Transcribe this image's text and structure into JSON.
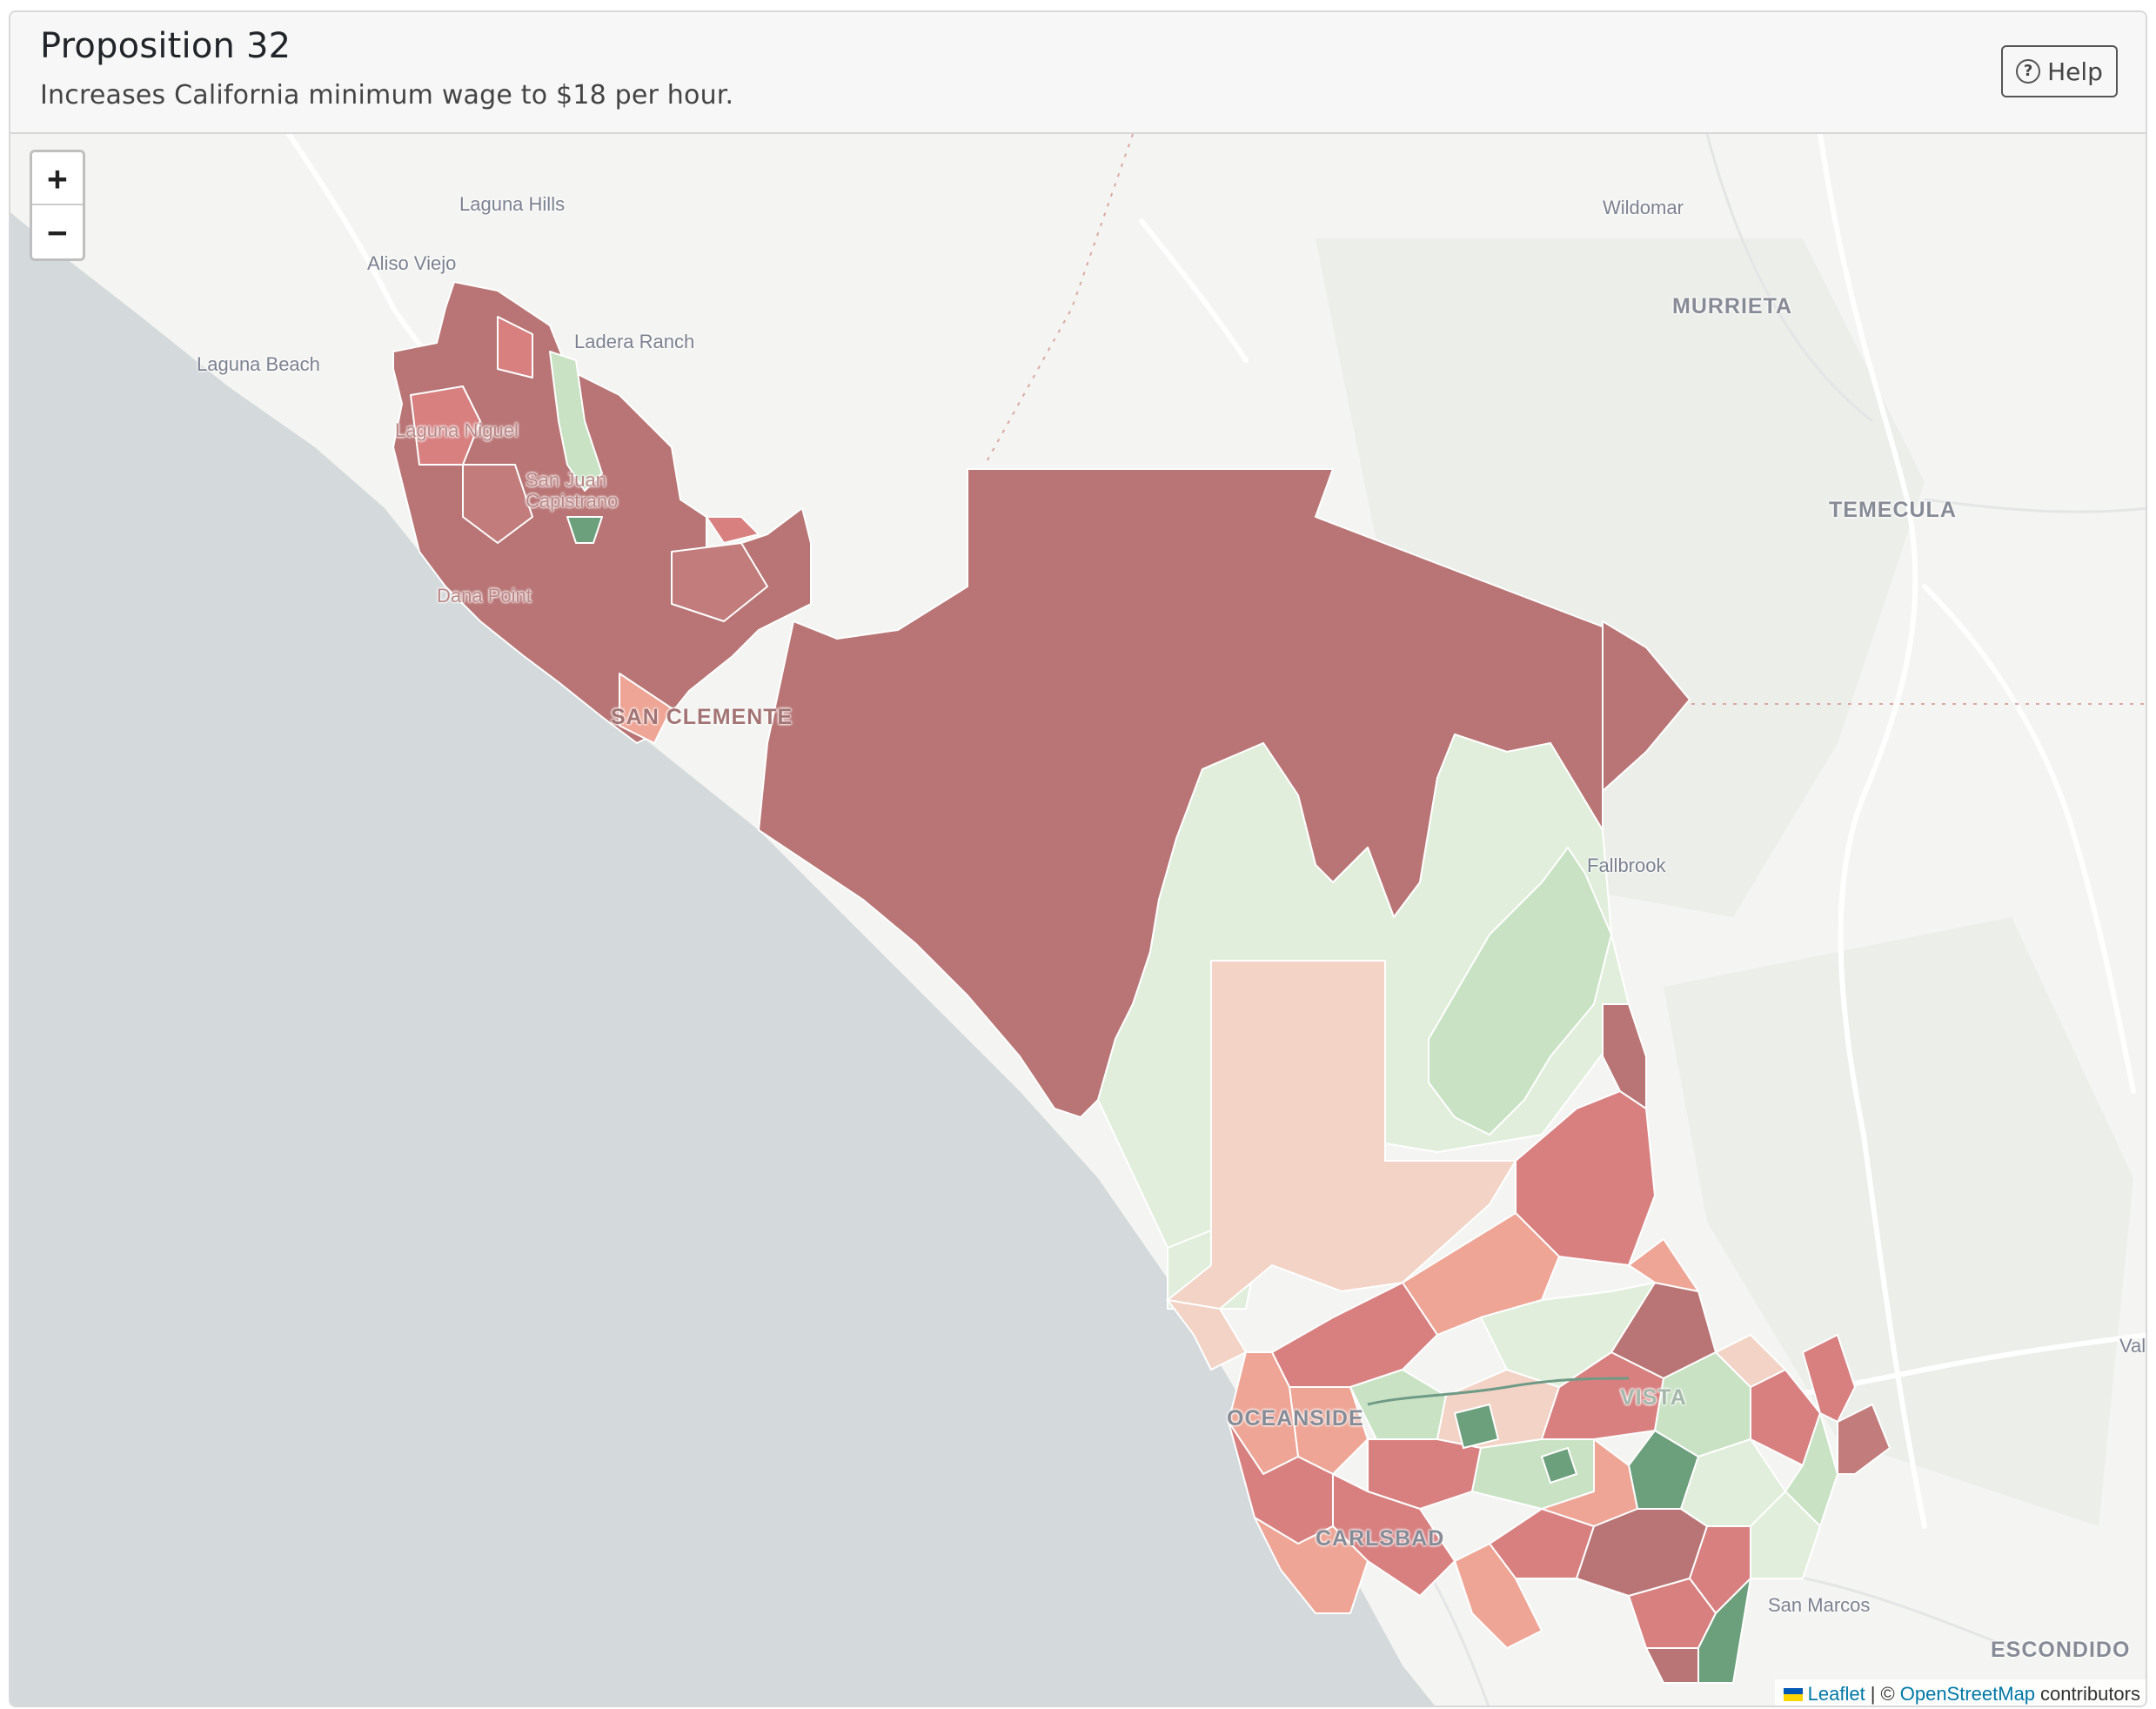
{
  "header": {
    "title": "Proposition 32",
    "subtitle": "Increases California minimum wage to $18 per hour.",
    "help_label": "Help"
  },
  "map": {
    "zoom_in_label": "+",
    "zoom_out_label": "−",
    "place_labels": [
      {
        "text": "Laguna Hills",
        "kind": "town"
      },
      {
        "text": "Aliso Viejo",
        "kind": "town"
      },
      {
        "text": "Ladera Ranch",
        "kind": "town"
      },
      {
        "text": "Laguna Beach",
        "kind": "town"
      },
      {
        "text": "Laguna Niguel",
        "kind": "town"
      },
      {
        "text": "San Juan Capistrano",
        "kind": "town"
      },
      {
        "text": "Dana Point",
        "kind": "town"
      },
      {
        "text": "SAN CLEMENTE",
        "kind": "city"
      },
      {
        "text": "Wildomar",
        "kind": "town"
      },
      {
        "text": "MURRIETA",
        "kind": "city"
      },
      {
        "text": "TEMECULA",
        "kind": "city"
      },
      {
        "text": "Fallbrook",
        "kind": "town"
      },
      {
        "text": "OCEANSIDE",
        "kind": "city"
      },
      {
        "text": "VISTA",
        "kind": "city"
      },
      {
        "text": "CARLSBAD",
        "kind": "city"
      },
      {
        "text": "San Marcos",
        "kind": "town"
      },
      {
        "text": "ESCONDIDO",
        "kind": "city"
      },
      {
        "text": "Val",
        "kind": "town"
      }
    ],
    "colors": {
      "ocean": "#d4d9dc",
      "land": "#f4f4f2",
      "no_strong": "#b97575",
      "no_medium": "#d88080",
      "no_light": "#eea595",
      "no_faint": "#f2d3c6",
      "yes_faint": "#e1eedc",
      "yes_light": "#c9e2c4",
      "yes_strong": "#6c9f7c"
    },
    "attribution": {
      "leaflet_label": "Leaflet",
      "separator": "| ©",
      "osm_label": "OpenStreetMap",
      "suffix": "contributors"
    }
  }
}
